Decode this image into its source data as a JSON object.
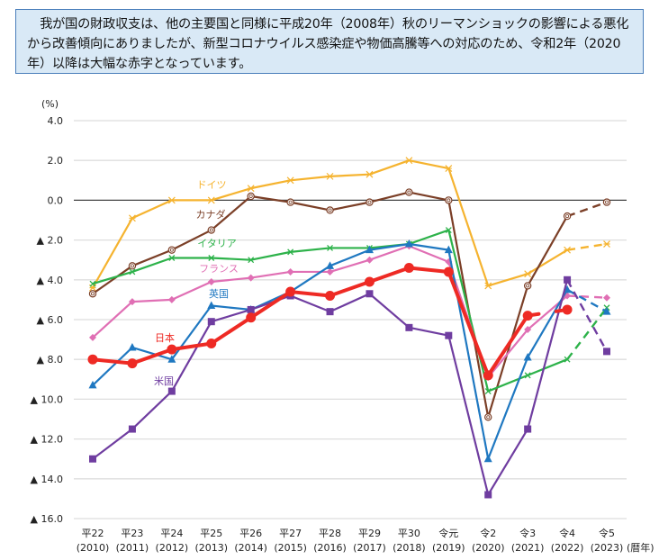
{
  "note": {
    "text": "我が国の財政収支は、他の主要国と同様に平成20年（2008年）秋のリーマンショックの影響による悪化から改善傾向にありましたが、新型コロナウイルス感染症や物価高騰等への対応のため、令和2年（2020年）以降は大幅な赤字となっています。"
  },
  "chart_data": {
    "type": "line",
    "title": "",
    "ylabel": "(%)",
    "xlabel": "(暦年)",
    "ylim": [
      -16,
      4
    ],
    "yticks": [
      4,
      2,
      0,
      -2,
      -4,
      -6,
      -8,
      -10,
      -12,
      -14,
      -16
    ],
    "ytick_labels": [
      "4.0",
      "2.0",
      "0.0",
      "▲ 2.0",
      "▲ 4.0",
      "▲ 6.0",
      "▲ 8.0",
      "▲ 10.0",
      "▲ 12.0",
      "▲ 14.0",
      "▲ 16.0"
    ],
    "grid": true,
    "categories": [
      "平22",
      "平23",
      "平24",
      "平25",
      "平26",
      "平27",
      "平28",
      "平29",
      "平30",
      "令元",
      "令2",
      "令3",
      "令4",
      "令5"
    ],
    "category_years": [
      "(2010)",
      "(2011)",
      "(2012)",
      "(2013)",
      "(2014)",
      "(2015)",
      "(2016)",
      "(2017)",
      "(2018)",
      "(2019)",
      "(2020)",
      "(2021)",
      "(2022)",
      "(2023)"
    ],
    "projection_from_index": 12,
    "series": [
      {
        "name": "ドイツ",
        "color": "#f5b32f",
        "marker": "asterisk",
        "values": [
          -4.4,
          -0.9,
          0.0,
          0.0,
          0.6,
          1.0,
          1.2,
          1.3,
          2.0,
          1.6,
          -4.3,
          -3.7,
          -2.5,
          -2.2
        ]
      },
      {
        "name": "カナダ",
        "color": "#7b3f27",
        "marker": "circle-open",
        "values": [
          -4.7,
          -3.3,
          -2.5,
          -1.5,
          0.2,
          -0.1,
          -0.5,
          -0.1,
          0.4,
          0.0,
          -10.9,
          -4.3,
          -0.8,
          -0.1
        ]
      },
      {
        "name": "イタリア",
        "color": "#2db24a",
        "marker": "x",
        "values": [
          -4.2,
          -3.6,
          -2.9,
          -2.9,
          -3.0,
          -2.6,
          -2.4,
          -2.4,
          -2.2,
          -1.5,
          -9.6,
          -8.8,
          -8.0,
          -5.4
        ]
      },
      {
        "name": "フランス",
        "color": "#e06fb4",
        "marker": "diamond",
        "values": [
          -6.9,
          -5.1,
          -5.0,
          -4.1,
          -3.9,
          -3.6,
          -3.6,
          -3.0,
          -2.3,
          -3.1,
          -8.9,
          -6.5,
          -4.8,
          -4.9
        ]
      },
      {
        "name": "英国",
        "color": "#1f78c1",
        "marker": "triangle",
        "values": [
          -9.3,
          -7.4,
          -8.0,
          -5.3,
          -5.5,
          -4.6,
          -3.3,
          -2.5,
          -2.2,
          -2.5,
          -13.0,
          -7.9,
          -4.5,
          -5.6
        ]
      },
      {
        "name": "米国",
        "color": "#6f3da0",
        "marker": "square",
        "values": [
          -13.0,
          -11.5,
          -9.6,
          -6.1,
          -5.5,
          -4.8,
          -5.6,
          -4.7,
          -6.4,
          -6.8,
          -14.8,
          -11.5,
          -4.0,
          -7.6
        ]
      },
      {
        "name": "日本",
        "color": "#ee2a24",
        "marker": "circle-filled",
        "thick": true,
        "gap_between": [
          11,
          12
        ],
        "values": [
          -8.0,
          -8.2,
          -7.5,
          -7.2,
          -5.9,
          -4.6,
          -4.8,
          -4.1,
          -3.4,
          -3.6,
          -8.8,
          -5.8,
          -5.5,
          null
        ]
      }
    ]
  }
}
